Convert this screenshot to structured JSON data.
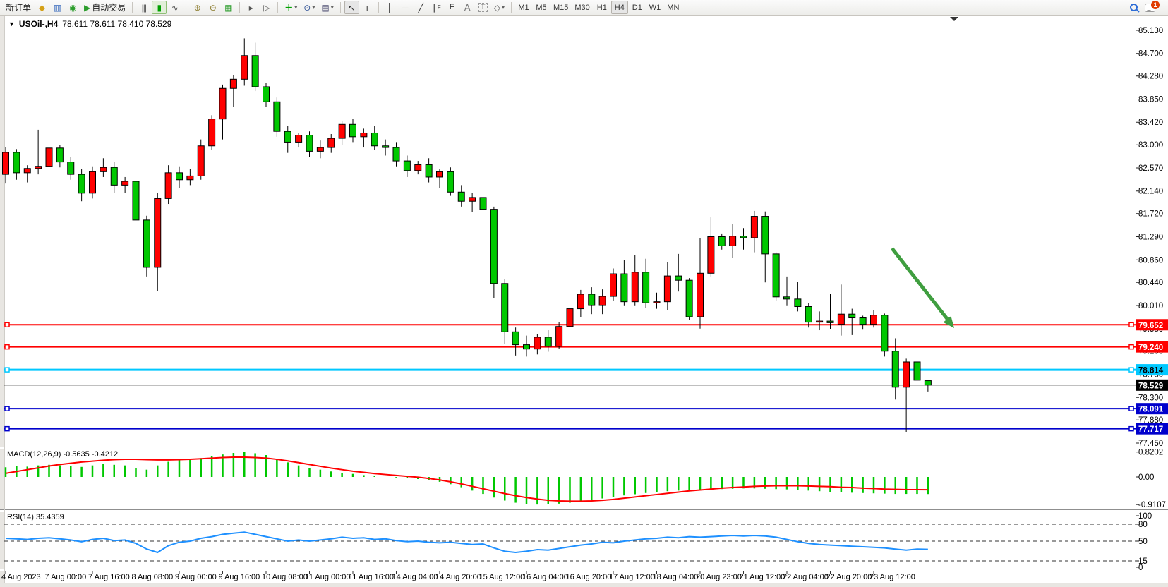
{
  "toolbar": {
    "new_order_label": "新订单",
    "auto_trading_label": "自动交易",
    "timeframes": [
      "M1",
      "M5",
      "M15",
      "M30",
      "H1",
      "H4",
      "D1",
      "W1",
      "MN"
    ],
    "active_timeframe": "H4",
    "notification_count": "1",
    "icon_glyphs": {
      "chart_menu": "▼",
      "market_watch": "◆",
      "navigator": "▥",
      "signals": "◉",
      "autotrading": "▶",
      "bars": "|||",
      "candles": "▮",
      "line_chart": "∿",
      "zoom_in": "⊕",
      "zoom_out": "⊖",
      "tile_windows": "▦",
      "auto_scroll": "▸",
      "chart_shift": "▷",
      "add_indicator": "＋",
      "periods": "⊙",
      "template": "▤",
      "cursor": "↖",
      "crosshair": "+",
      "vline": "│",
      "hline": "─",
      "trendline": "╱",
      "channel": "∥",
      "fibonacci": "F",
      "text_a": "A",
      "text_label": "T",
      "shapes": "◇",
      "caret": "▾"
    }
  },
  "chart": {
    "title": "USOil-,H4",
    "ohlc": "78.611 78.611 78.410 78.529"
  },
  "chart_data": {
    "type": "candlestick",
    "title": "USOil-,H4 78.611 78.611 78.410 78.529",
    "up_color": "#ff0000",
    "down_color": "#00c800",
    "outline_color": "#000000",
    "background": "#ffffff",
    "y_axis_ticks": [
      "85.130",
      "84.700",
      "84.280",
      "83.850",
      "83.420",
      "83.000",
      "82.570",
      "82.140",
      "81.720",
      "81.290",
      "80.860",
      "80.440",
      "80.010",
      "79.580",
      "79.160",
      "78.730",
      "78.300",
      "77.880",
      "77.450"
    ],
    "y_range": [
      77.45,
      85.13
    ],
    "x_labels": [
      "4 Aug 2023",
      "7 Aug 00:00",
      "7 Aug 16:00",
      "8 Aug 08:00",
      "9 Aug 00:00",
      "9 Aug 16:00",
      "10 Aug 08:00",
      "11 Aug 00:00",
      "11 Aug 16:00",
      "14 Aug 04:00",
      "14 Aug 20:00",
      "15 Aug 12:00",
      "16 Aug 04:00",
      "16 Aug 20:00",
      "17 Aug 12:00",
      "18 Aug 04:00",
      "20 Aug 23:00",
      "21 Aug 12:00",
      "22 Aug 04:00",
      "22 Aug 20:00",
      "23 Aug 12:00"
    ],
    "candles": [
      [
        82.45,
        82.95,
        82.28,
        82.86
      ],
      [
        82.86,
        82.92,
        82.35,
        82.48
      ],
      [
        82.48,
        82.62,
        82.3,
        82.56
      ],
      [
        82.56,
        83.28,
        82.45,
        82.6
      ],
      [
        82.6,
        83.05,
        82.48,
        82.94
      ],
      [
        82.94,
        83.0,
        82.58,
        82.68
      ],
      [
        82.68,
        82.78,
        82.35,
        82.45
      ],
      [
        82.45,
        82.55,
        81.95,
        82.1
      ],
      [
        82.1,
        82.6,
        82.0,
        82.5
      ],
      [
        82.5,
        82.75,
        82.4,
        82.58
      ],
      [
        82.58,
        82.68,
        82.1,
        82.25
      ],
      [
        82.25,
        82.4,
        82.1,
        82.32
      ],
      [
        82.32,
        82.45,
        81.5,
        81.6
      ],
      [
        81.6,
        81.68,
        80.55,
        80.72
      ],
      [
        80.72,
        82.1,
        80.28,
        82.0
      ],
      [
        82.0,
        82.62,
        81.9,
        82.48
      ],
      [
        82.48,
        82.6,
        82.2,
        82.35
      ],
      [
        82.35,
        82.55,
        82.25,
        82.42
      ],
      [
        82.42,
        83.1,
        82.35,
        82.98
      ],
      [
        82.98,
        83.55,
        82.9,
        83.48
      ],
      [
        83.48,
        84.12,
        83.1,
        84.05
      ],
      [
        84.05,
        84.3,
        83.7,
        84.22
      ],
      [
        84.22,
        84.98,
        84.1,
        84.66
      ],
      [
        84.66,
        84.9,
        84.0,
        84.08
      ],
      [
        84.08,
        84.15,
        83.7,
        83.8
      ],
      [
        83.8,
        83.88,
        83.15,
        83.25
      ],
      [
        83.25,
        83.35,
        82.85,
        83.05
      ],
      [
        83.05,
        83.22,
        82.95,
        83.18
      ],
      [
        83.18,
        83.25,
        82.78,
        82.88
      ],
      [
        82.88,
        83.08,
        82.75,
        82.95
      ],
      [
        82.95,
        83.2,
        82.85,
        83.12
      ],
      [
        83.12,
        83.45,
        83.0,
        83.38
      ],
      [
        83.38,
        83.48,
        83.05,
        83.15
      ],
      [
        83.15,
        83.3,
        82.95,
        83.22
      ],
      [
        83.22,
        83.35,
        82.9,
        82.98
      ],
      [
        82.98,
        83.1,
        82.8,
        82.95
      ],
      [
        82.95,
        83.05,
        82.6,
        82.7
      ],
      [
        82.7,
        82.8,
        82.4,
        82.52
      ],
      [
        82.52,
        82.7,
        82.45,
        82.63
      ],
      [
        82.63,
        82.75,
        82.3,
        82.4
      ],
      [
        82.4,
        82.55,
        82.2,
        82.5
      ],
      [
        82.5,
        82.58,
        82.05,
        82.12
      ],
      [
        82.12,
        82.25,
        81.85,
        81.95
      ],
      [
        81.95,
        82.1,
        81.75,
        82.02
      ],
      [
        82.02,
        82.08,
        81.6,
        81.8
      ],
      [
        81.8,
        81.85,
        80.15,
        80.42
      ],
      [
        80.42,
        80.5,
        79.3,
        79.52
      ],
      [
        79.52,
        79.6,
        79.08,
        79.28
      ],
      [
        79.28,
        79.45,
        79.06,
        79.2
      ],
      [
        79.2,
        79.48,
        79.1,
        79.42
      ],
      [
        79.42,
        79.55,
        79.15,
        79.25
      ],
      [
        79.25,
        79.7,
        79.2,
        79.62
      ],
      [
        79.62,
        80.05,
        79.55,
        79.95
      ],
      [
        79.95,
        80.3,
        79.8,
        80.22
      ],
      [
        80.22,
        80.35,
        79.85,
        80.01
      ],
      [
        80.01,
        80.31,
        79.85,
        80.18
      ],
      [
        80.18,
        80.7,
        80.1,
        80.6
      ],
      [
        80.6,
        80.85,
        80.0,
        80.08
      ],
      [
        80.08,
        80.95,
        80.0,
        80.63
      ],
      [
        80.63,
        80.88,
        79.96,
        80.06
      ],
      [
        80.06,
        80.25,
        79.95,
        80.08
      ],
      [
        80.08,
        80.82,
        79.93,
        80.56
      ],
      [
        80.56,
        80.97,
        80.27,
        80.48
      ],
      [
        80.48,
        80.52,
        79.74,
        79.8
      ],
      [
        79.8,
        81.26,
        79.58,
        80.61
      ],
      [
        80.61,
        81.65,
        80.55,
        81.29
      ],
      [
        81.29,
        81.35,
        81.05,
        81.12
      ],
      [
        81.12,
        81.52,
        80.9,
        81.3
      ],
      [
        81.3,
        81.45,
        81.05,
        81.27
      ],
      [
        81.27,
        81.77,
        81.0,
        81.67
      ],
      [
        81.67,
        81.76,
        80.44,
        80.97
      ],
      [
        80.97,
        81.0,
        80.1,
        80.17
      ],
      [
        80.17,
        80.55,
        80.0,
        80.13
      ],
      [
        80.13,
        80.45,
        79.9,
        79.99
      ],
      [
        79.99,
        80.05,
        79.6,
        79.7
      ],
      [
        79.7,
        79.9,
        79.55,
        79.72
      ],
      [
        79.72,
        80.23,
        79.57,
        79.69
      ],
      [
        79.66,
        80.4,
        79.45,
        79.85
      ],
      [
        79.85,
        79.95,
        79.46,
        79.78
      ],
      [
        79.78,
        79.82,
        79.56,
        79.66
      ],
      [
        79.66,
        79.92,
        79.6,
        79.83
      ],
      [
        79.83,
        79.86,
        79.06,
        79.16
      ],
      [
        79.16,
        79.4,
        78.26,
        78.49
      ],
      [
        78.49,
        79.02,
        77.66,
        78.96
      ],
      [
        78.96,
        79.2,
        78.46,
        78.62
      ],
      [
        78.611,
        78.611,
        78.41,
        78.529
      ]
    ],
    "hlines": [
      {
        "price": 79.652,
        "label": "79.652",
        "color": "#ff0000",
        "text_color": "#ffffff",
        "width": 2
      },
      {
        "price": 79.24,
        "label": "79.240",
        "color": "#ff0000",
        "text_color": "#ffffff",
        "width": 2
      },
      {
        "price": 78.814,
        "label": "78.814",
        "color": "#00c8ff",
        "text_color": "#000000",
        "width": 3
      },
      {
        "price": 78.529,
        "label": "78.529",
        "color": "#000000",
        "text_color": "#ffffff",
        "width": 1,
        "bid_line": true
      },
      {
        "price": 78.091,
        "label": "78.091",
        "color": "#0000cc",
        "text_color": "#ffffff",
        "width": 2
      },
      {
        "price": 77.717,
        "label": "77.717",
        "color": "#0000cc",
        "text_color": "#ffffff",
        "width": 2
      }
    ],
    "macd": {
      "label": "MACD(12,26,9) -0.5635 -0.4212",
      "axis_labels": [
        "0.8202",
        "0.00",
        "-0.9107"
      ],
      "histogram_color": "#00c800",
      "signal_color": "#ff0000",
      "histogram": [
        0.32,
        0.35,
        0.34,
        0.38,
        0.4,
        0.38,
        0.36,
        0.33,
        0.38,
        0.42,
        0.4,
        0.38,
        0.3,
        0.24,
        0.38,
        0.5,
        0.55,
        0.58,
        0.62,
        0.68,
        0.74,
        0.79,
        0.82,
        0.78,
        0.72,
        0.6,
        0.48,
        0.38,
        0.3,
        0.24,
        0.18,
        0.14,
        0.1,
        0.06,
        0.03,
        0.0,
        -0.02,
        -0.04,
        -0.07,
        -0.1,
        -0.16,
        -0.24,
        -0.34,
        -0.45,
        -0.56,
        -0.68,
        -0.78,
        -0.85,
        -0.89,
        -0.91,
        -0.9,
        -0.88,
        -0.85,
        -0.81,
        -0.76,
        -0.71,
        -0.66,
        -0.61,
        -0.57,
        -0.53,
        -0.5,
        -0.47,
        -0.45,
        -0.43,
        -0.42,
        -0.41,
        -0.4,
        -0.39,
        -0.38,
        -0.38,
        -0.39,
        -0.4,
        -0.41,
        -0.43,
        -0.45,
        -0.47,
        -0.49,
        -0.51,
        -0.52,
        -0.53,
        -0.54,
        -0.55,
        -0.56,
        -0.56,
        -0.56,
        -0.5635
      ],
      "signal": [
        0.12,
        0.18,
        0.24,
        0.3,
        0.36,
        0.41,
        0.45,
        0.49,
        0.52,
        0.55,
        0.57,
        0.58,
        0.58,
        0.57,
        0.56,
        0.56,
        0.57,
        0.58,
        0.6,
        0.62,
        0.64,
        0.65,
        0.65,
        0.64,
        0.62,
        0.58,
        0.53,
        0.47,
        0.41,
        0.35,
        0.29,
        0.24,
        0.19,
        0.15,
        0.11,
        0.08,
        0.05,
        0.02,
        -0.01,
        -0.05,
        -0.1,
        -0.16,
        -0.23,
        -0.31,
        -0.39,
        -0.47,
        -0.55,
        -0.62,
        -0.68,
        -0.73,
        -0.77,
        -0.79,
        -0.8,
        -0.8,
        -0.79,
        -0.77,
        -0.74,
        -0.7,
        -0.66,
        -0.62,
        -0.58,
        -0.54,
        -0.5,
        -0.46,
        -0.43,
        -0.4,
        -0.37,
        -0.35,
        -0.33,
        -0.31,
        -0.3,
        -0.29,
        -0.29,
        -0.29,
        -0.3,
        -0.31,
        -0.32,
        -0.34,
        -0.35,
        -0.37,
        -0.38,
        -0.4,
        -0.41,
        -0.42,
        -0.42,
        -0.4212
      ]
    },
    "rsi": {
      "label": "RSI(14) 35.4359",
      "axis_labels": [
        "100",
        "80",
        "50",
        "15",
        "0"
      ],
      "levels": [
        80,
        50,
        15
      ],
      "line_color": "#1e90ff",
      "values": [
        55,
        54,
        53,
        55,
        56,
        54,
        52,
        49,
        53,
        55,
        51,
        52,
        46,
        36,
        30,
        42,
        48,
        50,
        55,
        58,
        62,
        64,
        66,
        62,
        58,
        54,
        50,
        52,
        50,
        52,
        54,
        57,
        55,
        56,
        53,
        54,
        51,
        49,
        50,
        48,
        47,
        48,
        46,
        44,
        45,
        38,
        32,
        30,
        32,
        35,
        34,
        37,
        40,
        43,
        45,
        48,
        47,
        50,
        52,
        54,
        55,
        57,
        56,
        58,
        57,
        58,
        59,
        60,
        59,
        60,
        59,
        57,
        53,
        49,
        46,
        44,
        43,
        42,
        41,
        40,
        39,
        38,
        36,
        34,
        36,
        35.4359
      ]
    },
    "annotation_arrow": {
      "color": "#3f9e3f"
    }
  }
}
